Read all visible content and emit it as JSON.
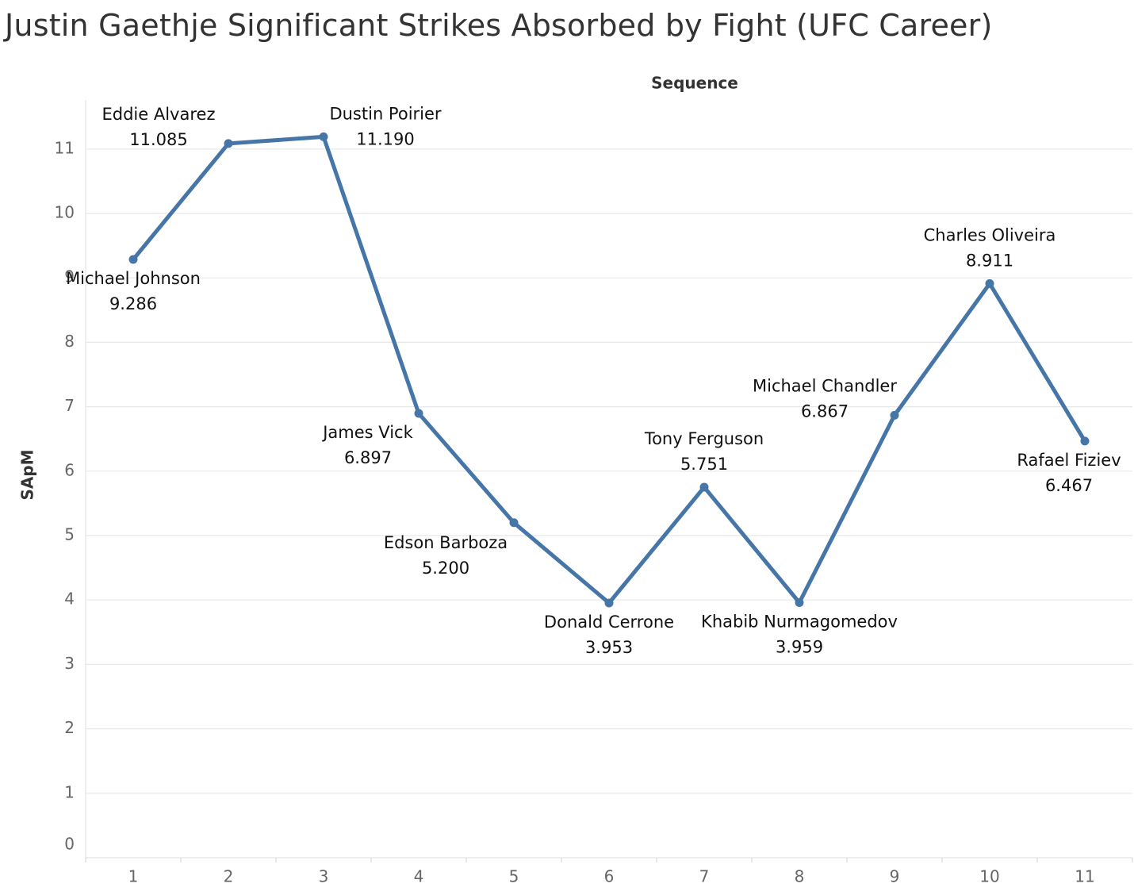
{
  "chart_data": {
    "type": "line",
    "title": "Justin Gaethje Significant Strikes Absorbed by Fight (UFC Career)",
    "xlabel": "Sequence",
    "ylabel": "SApM",
    "x": [
      1,
      2,
      3,
      4,
      5,
      6,
      7,
      8,
      9,
      10,
      11
    ],
    "values": [
      9.286,
      11.085,
      11.19,
      6.897,
      5.2,
      3.953,
      5.751,
      3.959,
      6.867,
      8.911,
      6.467
    ],
    "value_labels": [
      "9.286",
      "11.085",
      "11.190",
      "6.897",
      "5.200",
      "3.953",
      "5.751",
      "3.959",
      "6.867",
      "8.911",
      "6.467"
    ],
    "opponents": [
      "Michael Johnson",
      "Eddie Alvarez",
      "Dustin Poirier",
      "James Vick",
      "Edson Barboza",
      "Donald Cerrone",
      "Tony Ferguson",
      "Khabib Nurmagomedov",
      "Michael Chandler",
      "Charles Oliveira",
      "Rafael Fiziev"
    ],
    "label_positions": [
      "below",
      "above-left",
      "above-right",
      "left",
      "below-left",
      "below",
      "above",
      "below",
      "above-left",
      "above",
      "below"
    ],
    "xlim": [
      0.5,
      11.5
    ],
    "ylim": [
      0,
      11.4
    ],
    "yticks": [
      0,
      1,
      2,
      3,
      4,
      5,
      6,
      7,
      8,
      9,
      10,
      11
    ],
    "grid": true,
    "line_color": "#4676a8"
  }
}
